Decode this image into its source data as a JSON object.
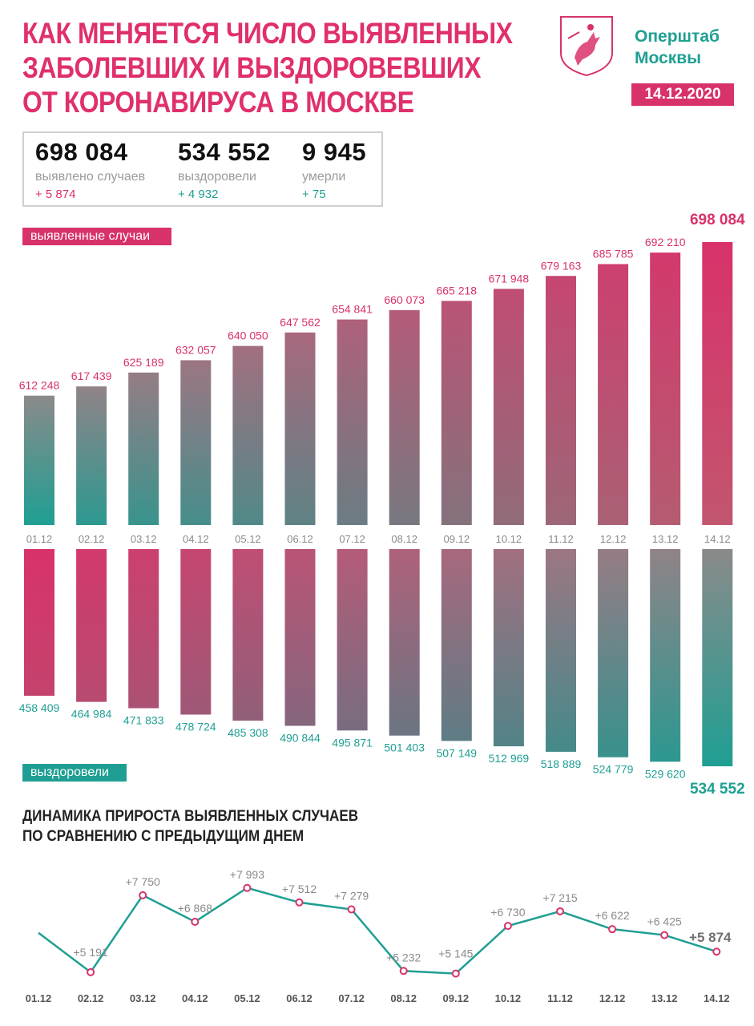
{
  "header": {
    "title_lines": [
      "КАК МЕНЯЕТСЯ ЧИСЛО ВЫЯВЛЕННЫХ",
      "ЗАБОЛЕВШИХ И ВЫЗДОРОВЕВШИХ",
      "ОТ КОРОНАВИРУСА В МОСКВЕ"
    ],
    "brand_line1": "Оперштаб",
    "brand_line2": "Москвы",
    "date": "14.12.2020",
    "emblem_icon": "moscow-coat-of-arms-icon"
  },
  "summary": {
    "cases": {
      "value": "698 084",
      "label": "выявлено случаев",
      "delta": "+ 5 874"
    },
    "recovered": {
      "value": "534 552",
      "label": "выздоровели",
      "delta": "+ 4 932"
    },
    "deaths": {
      "value": "9 945",
      "label": "умерли",
      "delta": "+ 75"
    }
  },
  "colors": {
    "pink": "#d8326a",
    "teal": "#1f9f93",
    "gray": "#8a8a8a"
  },
  "chart_data": [
    {
      "type": "bar",
      "legend": "выявленные случаи",
      "categories": [
        "01.12",
        "02.12",
        "03.12",
        "04.12",
        "05.12",
        "06.12",
        "07.12",
        "08.12",
        "09.12",
        "10.12",
        "11.12",
        "12.12",
        "13.12",
        "14.12"
      ],
      "values": [
        612248,
        617439,
        625189,
        632057,
        640050,
        647562,
        654841,
        660073,
        665218,
        671948,
        679163,
        685785,
        692210,
        698084
      ],
      "labels": [
        "612 248",
        "617 439",
        "625 189",
        "632 057",
        "640 050",
        "647 562",
        "654 841",
        "660 073",
        "665 218",
        "671 948",
        "679 163",
        "685 785",
        "692 210",
        "698 084"
      ]
    },
    {
      "type": "bar",
      "legend": "выздоровели",
      "categories": [
        "01.12",
        "02.12",
        "03.12",
        "04.12",
        "05.12",
        "06.12",
        "07.12",
        "08.12",
        "09.12",
        "10.12",
        "11.12",
        "12.12",
        "13.12",
        "14.12"
      ],
      "values": [
        458409,
        464984,
        471833,
        478724,
        485308,
        490844,
        495871,
        501403,
        507149,
        512969,
        518889,
        524779,
        529620,
        534552
      ],
      "labels": [
        "458 409",
        "464 984",
        "471 833",
        "478 724",
        "485 308",
        "490 844",
        "495 871",
        "501 403",
        "507 149",
        "512 969",
        "518 889",
        "524 779",
        "529 620",
        "534 552"
      ]
    },
    {
      "type": "line",
      "title_lines": [
        "ДИНАМИКА ПРИРОСТА ВЫЯВЛЕННЫХ СЛУЧАЕВ",
        "ПО СРАВНЕНИЮ С ПРЕДЫДУЩИМ ДНЕМ"
      ],
      "categories": [
        "01.12",
        "02.12",
        "03.12",
        "04.12",
        "05.12",
        "06.12",
        "07.12",
        "08.12",
        "09.12",
        "10.12",
        "11.12",
        "12.12",
        "13.12",
        "14.12"
      ],
      "values": [
        6500,
        5191,
        7750,
        6868,
        7993,
        7512,
        7279,
        5232,
        5145,
        6730,
        7215,
        6622,
        6425,
        5874
      ],
      "labels": [
        "",
        "+5 191",
        "+7 750",
        "+6 868",
        "+7 993",
        "+7 512",
        "+7 279",
        "+5 232",
        "+5 145",
        "+6 730",
        "+7 215",
        "+6 622",
        "+6 425",
        "+5 874"
      ]
    }
  ]
}
